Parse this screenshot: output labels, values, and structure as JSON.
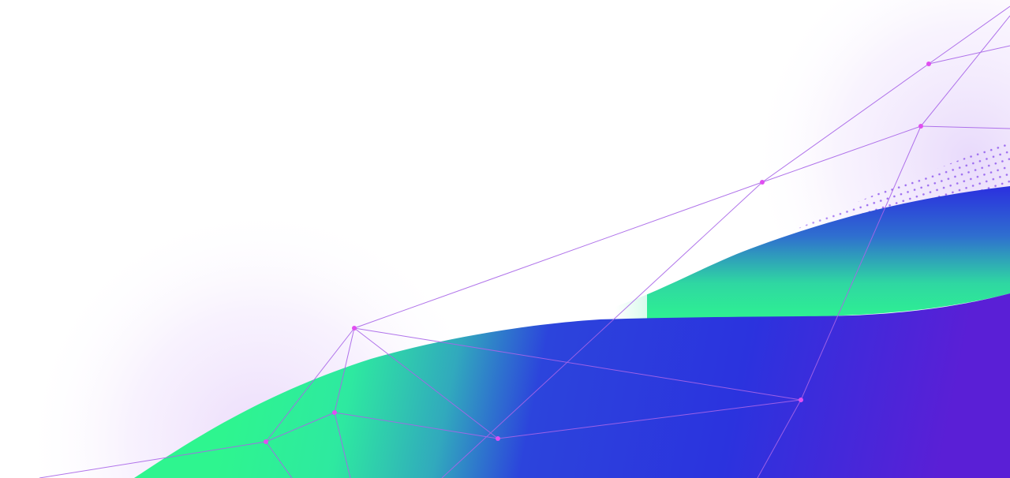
{
  "artwork": {
    "kind": "abstract-gradient-wave-with-network-lines",
    "colors": {
      "background": "#ffffff",
      "wave_green": "#2ef58f",
      "wave_blue": "#2b33de",
      "wave_purple": "#5a1fd6",
      "network_line": "#a865e8",
      "network_node": "#e04ef0",
      "dot_pattern": "#9c6cf0",
      "glow": "#efe2fb"
    }
  }
}
